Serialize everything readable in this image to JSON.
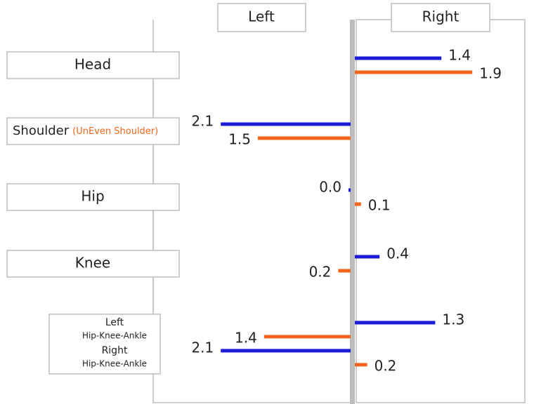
{
  "chart_data": {
    "type": "diverging-bar",
    "panels": [
      "Left",
      "Right"
    ],
    "xlim": [
      0,
      2.5
    ],
    "rows": [
      {
        "label": "Head",
        "bars": [
          {
            "value": 1.4,
            "side": "right",
            "color": "#1c1cd8"
          },
          {
            "value": 1.9,
            "side": "right",
            "color": "#f2661c"
          }
        ]
      },
      {
        "label": "Shoulder",
        "note": "(UnEven Shoulder)",
        "bars": [
          {
            "value": 2.1,
            "side": "left",
            "color": "#1c1cd8"
          },
          {
            "value": 1.5,
            "side": "left",
            "color": "#f2661c"
          }
        ]
      },
      {
        "label": "Hip",
        "bars": [
          {
            "value": 0,
            "value_label": "0.0",
            "side": "left",
            "color": "#1c1cd8"
          },
          {
            "value": 0.1,
            "side": "right",
            "color": "#f2661c"
          }
        ]
      },
      {
        "label": "Knee",
        "bars": [
          {
            "value": 0.4,
            "side": "right",
            "color": "#1c1cd8"
          },
          {
            "value": 0.2,
            "side": "left",
            "color": "#f2661c"
          }
        ]
      },
      {
        "labels": [
          {
            "title": "Left",
            "subtitle": "Hip-Knee-Ankle"
          },
          {
            "title": "Right",
            "subtitle": "Hip-Knee-Ankle"
          }
        ],
        "bars": [
          {
            "value": 1.3,
            "side": "right",
            "color": "#1c1cd8"
          },
          {
            "value": 1.4,
            "side": "left",
            "color": "#f2661c"
          },
          {
            "value": 2.1,
            "side": "left",
            "color": "#1c1cd8"
          },
          {
            "value": 0.2,
            "side": "right",
            "color": "#f2661c"
          }
        ]
      }
    ]
  }
}
